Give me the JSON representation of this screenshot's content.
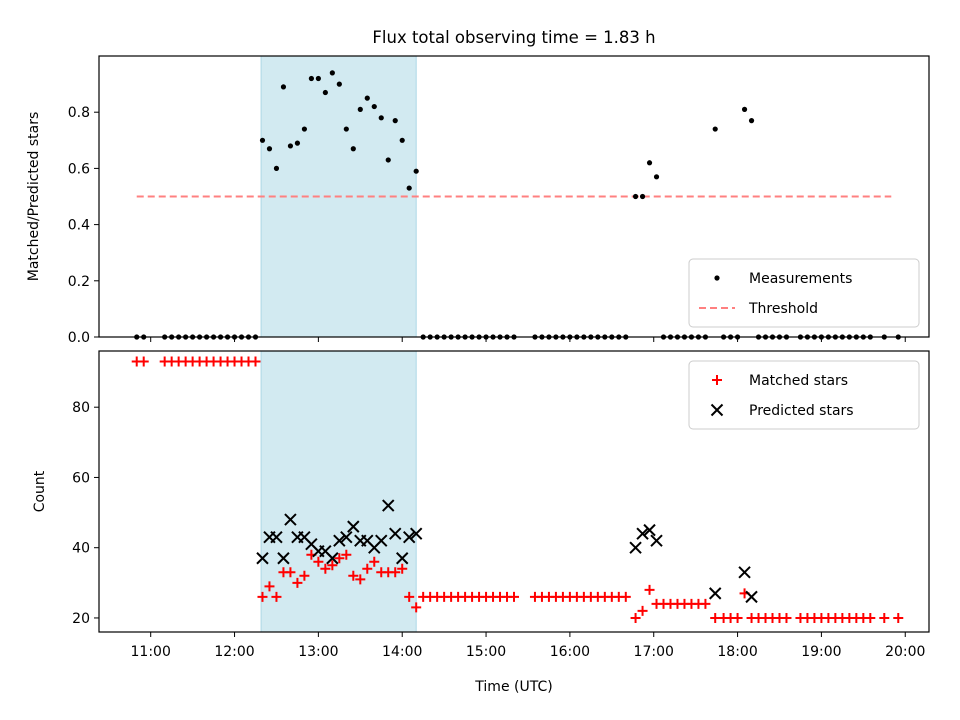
{
  "chart_data": [
    {
      "type": "scatter",
      "title": "Flux total observing time = 1.83 h",
      "xlabel": "",
      "ylabel": "Matched/Predicted stars",
      "xlim": [
        "10:23",
        "20:17"
      ],
      "ylim": [
        0,
        1.0
      ],
      "yticks": [
        "0.0",
        "0.2",
        "0.4",
        "0.6",
        "0.8"
      ],
      "grid": false,
      "legend": "bottom-right",
      "highlight_span": {
        "start": "12:19",
        "end": "14:10",
        "color": "#add8e6"
      },
      "threshold": {
        "name": "Threshold",
        "y": 0.5,
        "x": [
          "10:50",
          "19:50"
        ],
        "color": "#ff8080",
        "style": "dashed"
      },
      "series": [
        {
          "name": "Measurements",
          "color": "#000000",
          "marker": "dot",
          "points": [
            [
              "10:50",
              0
            ],
            [
              "10:55",
              0
            ],
            [
              "11:10",
              0
            ],
            [
              "11:15",
              0
            ],
            [
              "11:20",
              0
            ],
            [
              "11:25",
              0
            ],
            [
              "11:30",
              0
            ],
            [
              "11:35",
              0
            ],
            [
              "11:40",
              0
            ],
            [
              "11:45",
              0
            ],
            [
              "11:50",
              0
            ],
            [
              "11:55",
              0
            ],
            [
              "12:00",
              0
            ],
            [
              "12:05",
              0
            ],
            [
              "12:10",
              0
            ],
            [
              "12:15",
              0
            ],
            [
              "12:20",
              0.7
            ],
            [
              "12:25",
              0.67
            ],
            [
              "12:30",
              0.6
            ],
            [
              "12:35",
              0.89
            ],
            [
              "12:40",
              0.68
            ],
            [
              "12:45",
              0.69
            ],
            [
              "12:50",
              0.74
            ],
            [
              "12:55",
              0.92
            ],
            [
              "13:00",
              0.92
            ],
            [
              "13:05",
              0.87
            ],
            [
              "13:10",
              0.94
            ],
            [
              "13:15",
              0.9
            ],
            [
              "13:20",
              0.74
            ],
            [
              "13:25",
              0.67
            ],
            [
              "13:30",
              0.81
            ],
            [
              "13:35",
              0.85
            ],
            [
              "13:40",
              0.82
            ],
            [
              "13:45",
              0.78
            ],
            [
              "13:50",
              0.63
            ],
            [
              "13:55",
              0.77
            ],
            [
              "14:00",
              0.7
            ],
            [
              "14:05",
              0.53
            ],
            [
              "14:10",
              0.59
            ],
            [
              "14:15",
              0
            ],
            [
              "14:20",
              0
            ],
            [
              "14:25",
              0
            ],
            [
              "14:30",
              0
            ],
            [
              "14:35",
              0
            ],
            [
              "14:40",
              0
            ],
            [
              "14:45",
              0
            ],
            [
              "14:50",
              0
            ],
            [
              "14:55",
              0
            ],
            [
              "15:00",
              0
            ],
            [
              "15:05",
              0
            ],
            [
              "15:10",
              0
            ],
            [
              "15:15",
              0
            ],
            [
              "15:20",
              0
            ],
            [
              "15:35",
              0
            ],
            [
              "15:40",
              0
            ],
            [
              "15:45",
              0
            ],
            [
              "15:50",
              0
            ],
            [
              "15:55",
              0
            ],
            [
              "16:00",
              0
            ],
            [
              "16:05",
              0
            ],
            [
              "16:10",
              0
            ],
            [
              "16:15",
              0
            ],
            [
              "16:20",
              0
            ],
            [
              "16:25",
              0
            ],
            [
              "16:30",
              0
            ],
            [
              "16:35",
              0
            ],
            [
              "16:40",
              0
            ],
            [
              "16:47",
              0.5
            ],
            [
              "16:52",
              0.5
            ],
            [
              "16:57",
              0.62
            ],
            [
              "17:02",
              0.57
            ],
            [
              "17:07",
              0
            ],
            [
              "17:12",
              0
            ],
            [
              "17:17",
              0
            ],
            [
              "17:22",
              0
            ],
            [
              "17:27",
              0
            ],
            [
              "17:32",
              0
            ],
            [
              "17:37",
              0
            ],
            [
              "17:44",
              0.74
            ],
            [
              "17:50",
              0
            ],
            [
              "17:55",
              0
            ],
            [
              "18:00",
              0
            ],
            [
              "18:05",
              0.81
            ],
            [
              "18:10",
              0.77
            ],
            [
              "18:15",
              0
            ],
            [
              "18:20",
              0
            ],
            [
              "18:25",
              0
            ],
            [
              "18:30",
              0
            ],
            [
              "18:35",
              0
            ],
            [
              "18:45",
              0
            ],
            [
              "18:50",
              0
            ],
            [
              "18:55",
              0
            ],
            [
              "19:00",
              0
            ],
            [
              "19:05",
              0
            ],
            [
              "19:10",
              0
            ],
            [
              "19:15",
              0
            ],
            [
              "19:20",
              0
            ],
            [
              "19:25",
              0
            ],
            [
              "19:30",
              0
            ],
            [
              "19:35",
              0
            ],
            [
              "19:45",
              0
            ],
            [
              "19:55",
              0
            ]
          ]
        }
      ]
    },
    {
      "type": "scatter",
      "title": "",
      "xlabel": "Time (UTC)",
      "ylabel": "Count",
      "xlim": [
        "10:23",
        "20:17"
      ],
      "ylim": [
        16,
        96
      ],
      "yticks": [
        "20",
        "40",
        "60",
        "80"
      ],
      "xticks": [
        "11:00",
        "12:00",
        "13:00",
        "14:00",
        "15:00",
        "16:00",
        "17:00",
        "18:00",
        "19:00",
        "20:00"
      ],
      "grid": false,
      "legend": "top-right",
      "highlight_span": {
        "start": "12:19",
        "end": "14:10",
        "color": "#add8e6"
      },
      "series": [
        {
          "name": "Matched stars",
          "color": "#ff0000",
          "marker": "plus",
          "points": [
            [
              "10:50",
              93
            ],
            [
              "10:55",
              93
            ],
            [
              "11:10",
              93
            ],
            [
              "11:15",
              93
            ],
            [
              "11:20",
              93
            ],
            [
              "11:25",
              93
            ],
            [
              "11:30",
              93
            ],
            [
              "11:35",
              93
            ],
            [
              "11:40",
              93
            ],
            [
              "11:45",
              93
            ],
            [
              "11:50",
              93
            ],
            [
              "11:55",
              93
            ],
            [
              "12:00",
              93
            ],
            [
              "12:05",
              93
            ],
            [
              "12:10",
              93
            ],
            [
              "12:15",
              93
            ],
            [
              "12:20",
              26
            ],
            [
              "12:25",
              29
            ],
            [
              "12:30",
              26
            ],
            [
              "12:35",
              33
            ],
            [
              "12:40",
              33
            ],
            [
              "12:45",
              30
            ],
            [
              "12:50",
              32
            ],
            [
              "12:55",
              38
            ],
            [
              "13:00",
              36
            ],
            [
              "13:05",
              34
            ],
            [
              "13:10",
              35
            ],
            [
              "13:15",
              37
            ],
            [
              "13:20",
              38
            ],
            [
              "13:25",
              32
            ],
            [
              "13:30",
              31
            ],
            [
              "13:35",
              34
            ],
            [
              "13:40",
              36
            ],
            [
              "13:45",
              33
            ],
            [
              "13:50",
              33
            ],
            [
              "13:55",
              33
            ],
            [
              "14:00",
              34
            ],
            [
              "14:05",
              26
            ],
            [
              "14:10",
              23
            ],
            [
              "14:15",
              26
            ],
            [
              "14:20",
              26
            ],
            [
              "14:25",
              26
            ],
            [
              "14:30",
              26
            ],
            [
              "14:35",
              26
            ],
            [
              "14:40",
              26
            ],
            [
              "14:45",
              26
            ],
            [
              "14:50",
              26
            ],
            [
              "14:55",
              26
            ],
            [
              "15:00",
              26
            ],
            [
              "15:05",
              26
            ],
            [
              "15:10",
              26
            ],
            [
              "15:15",
              26
            ],
            [
              "15:20",
              26
            ],
            [
              "15:35",
              26
            ],
            [
              "15:40",
              26
            ],
            [
              "15:45",
              26
            ],
            [
              "15:50",
              26
            ],
            [
              "15:55",
              26
            ],
            [
              "16:00",
              26
            ],
            [
              "16:05",
              26
            ],
            [
              "16:10",
              26
            ],
            [
              "16:15",
              26
            ],
            [
              "16:20",
              26
            ],
            [
              "16:25",
              26
            ],
            [
              "16:30",
              26
            ],
            [
              "16:35",
              26
            ],
            [
              "16:40",
              26
            ],
            [
              "16:47",
              20
            ],
            [
              "16:52",
              22
            ],
            [
              "16:57",
              28
            ],
            [
              "17:02",
              24
            ],
            [
              "17:07",
              24
            ],
            [
              "17:12",
              24
            ],
            [
              "17:17",
              24
            ],
            [
              "17:22",
              24
            ],
            [
              "17:27",
              24
            ],
            [
              "17:32",
              24
            ],
            [
              "17:37",
              24
            ],
            [
              "17:44",
              20
            ],
            [
              "17:50",
              20
            ],
            [
              "17:55",
              20
            ],
            [
              "18:00",
              20
            ],
            [
              "18:05",
              27
            ],
            [
              "18:10",
              20
            ],
            [
              "18:15",
              20
            ],
            [
              "18:20",
              20
            ],
            [
              "18:25",
              20
            ],
            [
              "18:30",
              20
            ],
            [
              "18:35",
              20
            ],
            [
              "18:45",
              20
            ],
            [
              "18:50",
              20
            ],
            [
              "18:55",
              20
            ],
            [
              "19:00",
              20
            ],
            [
              "19:05",
              20
            ],
            [
              "19:10",
              20
            ],
            [
              "19:15",
              20
            ],
            [
              "19:20",
              20
            ],
            [
              "19:25",
              20
            ],
            [
              "19:30",
              20
            ],
            [
              "19:35",
              20
            ],
            [
              "19:45",
              20
            ],
            [
              "19:55",
              20
            ]
          ]
        },
        {
          "name": "Predicted stars",
          "color": "#000000",
          "marker": "x",
          "points": [
            [
              "12:20",
              37
            ],
            [
              "12:25",
              43
            ],
            [
              "12:30",
              43
            ],
            [
              "12:35",
              37
            ],
            [
              "12:40",
              48
            ],
            [
              "12:45",
              43
            ],
            [
              "12:50",
              43
            ],
            [
              "12:55",
              41
            ],
            [
              "13:00",
              39
            ],
            [
              "13:05",
              39
            ],
            [
              "13:10",
              37
            ],
            [
              "13:15",
              42
            ],
            [
              "13:20",
              43
            ],
            [
              "13:25",
              46
            ],
            [
              "13:30",
              42
            ],
            [
              "13:35",
              42
            ],
            [
              "13:40",
              40
            ],
            [
              "13:45",
              42
            ],
            [
              "13:50",
              52
            ],
            [
              "13:55",
              44
            ],
            [
              "14:00",
              37
            ],
            [
              "14:05",
              43
            ],
            [
              "14:10",
              44
            ],
            [
              "16:47",
              40
            ],
            [
              "16:52",
              44
            ],
            [
              "16:57",
              45
            ],
            [
              "17:02",
              42
            ],
            [
              "17:44",
              27
            ],
            [
              "18:05",
              33
            ],
            [
              "18:10",
              26
            ]
          ]
        }
      ]
    }
  ]
}
